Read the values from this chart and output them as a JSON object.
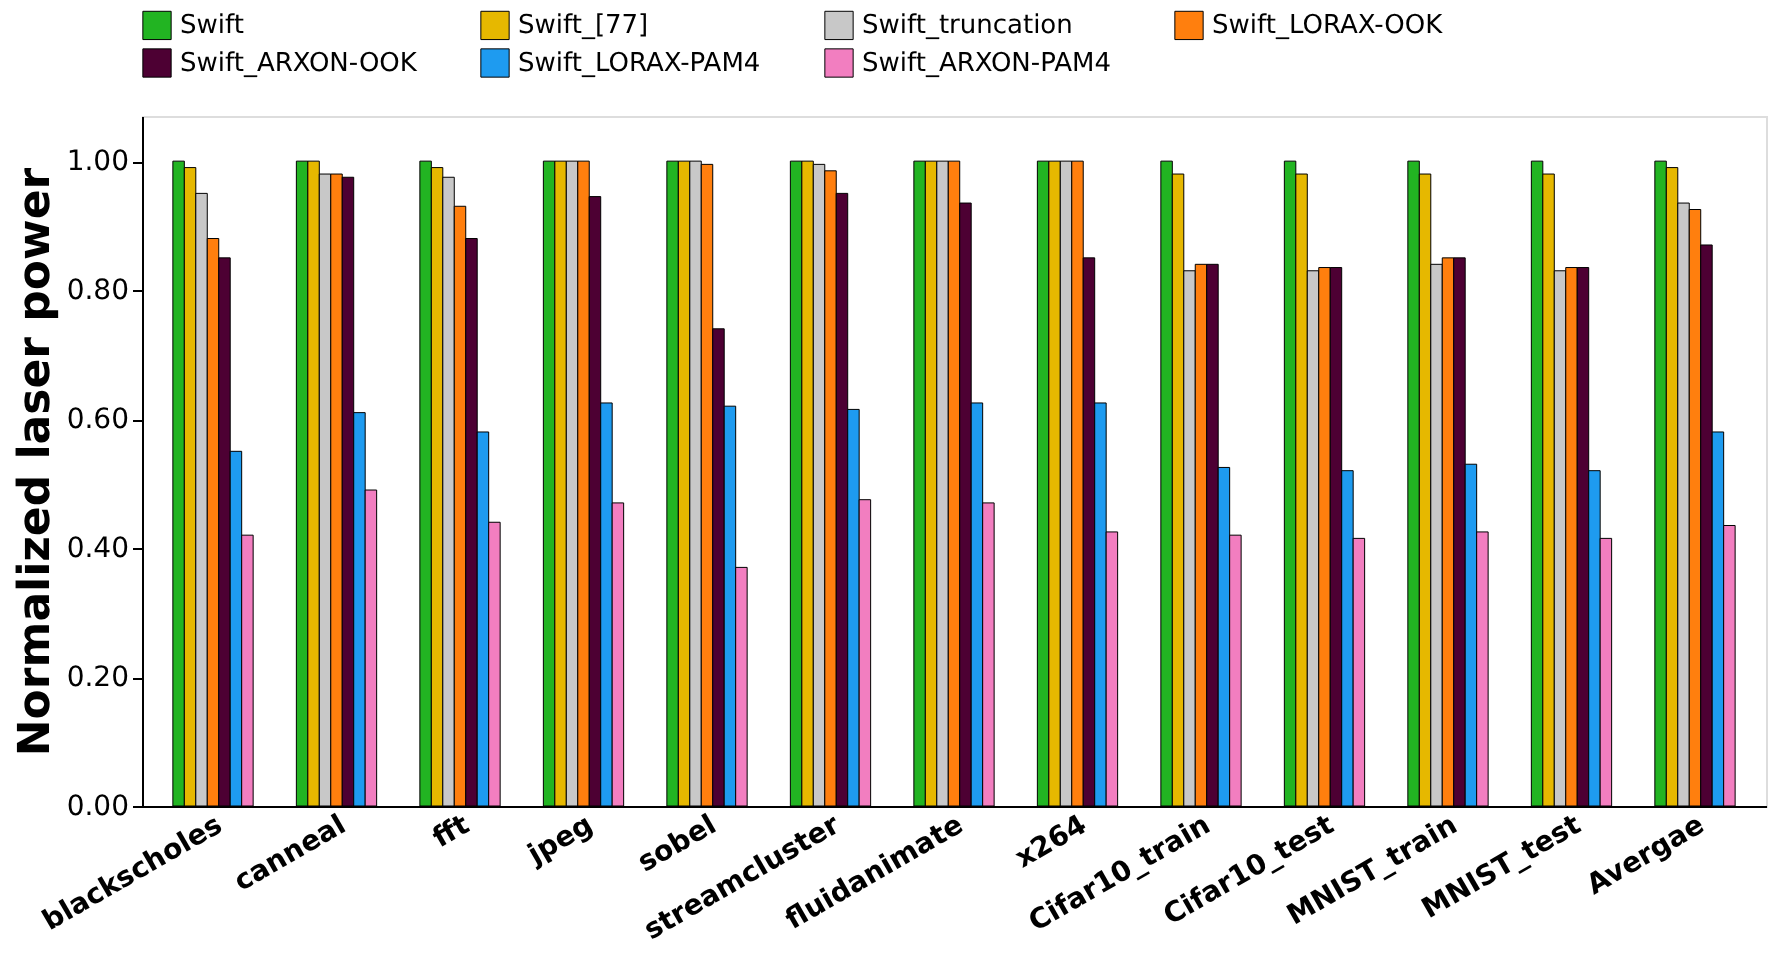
{
  "chart_data": {
    "type": "bar",
    "ylabel": "Normalized laser power",
    "categories": [
      "blackscholes",
      "canneal",
      "fft",
      "jpeg",
      "sobel",
      "streamcluster",
      "fluidanimate",
      "x264",
      "Cifar10_train",
      "Cifar10_test",
      "MNIST_train",
      "MNIST_test",
      "Avergae"
    ],
    "series": [
      {
        "name": "Swift",
        "color": "#22b422",
        "values": [
          1.0,
          1.0,
          1.0,
          1.0,
          1.0,
          1.0,
          1.0,
          1.0,
          1.0,
          1.0,
          1.0,
          1.0,
          1.0
        ]
      },
      {
        "name": "Swift_[77]",
        "color": "#e6b800",
        "values": [
          0.99,
          1.0,
          0.99,
          1.0,
          1.0,
          1.0,
          1.0,
          1.0,
          0.98,
          0.98,
          0.98,
          0.98,
          0.99
        ]
      },
      {
        "name": "Swift_truncation",
        "color": "#c8c8c8",
        "values": [
          0.95,
          0.98,
          0.975,
          1.0,
          1.0,
          0.995,
          1.0,
          1.0,
          0.83,
          0.83,
          0.84,
          0.83,
          0.935
        ]
      },
      {
        "name": "Swift_LORAX-OOK",
        "color": "#ff7f0e",
        "values": [
          0.88,
          0.98,
          0.93,
          1.0,
          0.995,
          0.985,
          1.0,
          1.0,
          0.84,
          0.835,
          0.85,
          0.835,
          0.925
        ]
      },
      {
        "name": "Swift_ARXON-OOK",
        "color": "#4d0033",
        "values": [
          0.85,
          0.975,
          0.88,
          0.945,
          0.74,
          0.95,
          0.935,
          0.85,
          0.84,
          0.835,
          0.85,
          0.835,
          0.87
        ]
      },
      {
        "name": "Swift_LORAX-PAM4",
        "color": "#1e9bf0",
        "values": [
          0.55,
          0.61,
          0.58,
          0.625,
          0.62,
          0.615,
          0.625,
          0.625,
          0.525,
          0.52,
          0.53,
          0.52,
          0.58
        ]
      },
      {
        "name": "Swift_ARXON-PAM4",
        "color": "#f27ec0",
        "values": [
          0.42,
          0.49,
          0.44,
          0.47,
          0.37,
          0.475,
          0.47,
          0.425,
          0.42,
          0.415,
          0.425,
          0.415,
          0.435
        ]
      }
    ],
    "ylim": [
      0,
      1.07
    ],
    "yticks": [
      {
        "value": 0,
        "label": "0.00"
      },
      {
        "value": 0.2,
        "label": "0.20"
      },
      {
        "value": 0.4,
        "label": "0.40"
      },
      {
        "value": 0.6,
        "label": "0.60"
      },
      {
        "value": 0.8,
        "label": "0.80"
      },
      {
        "value": 1.0,
        "label": "1.00"
      }
    ],
    "grid": false,
    "legend": "top"
  }
}
